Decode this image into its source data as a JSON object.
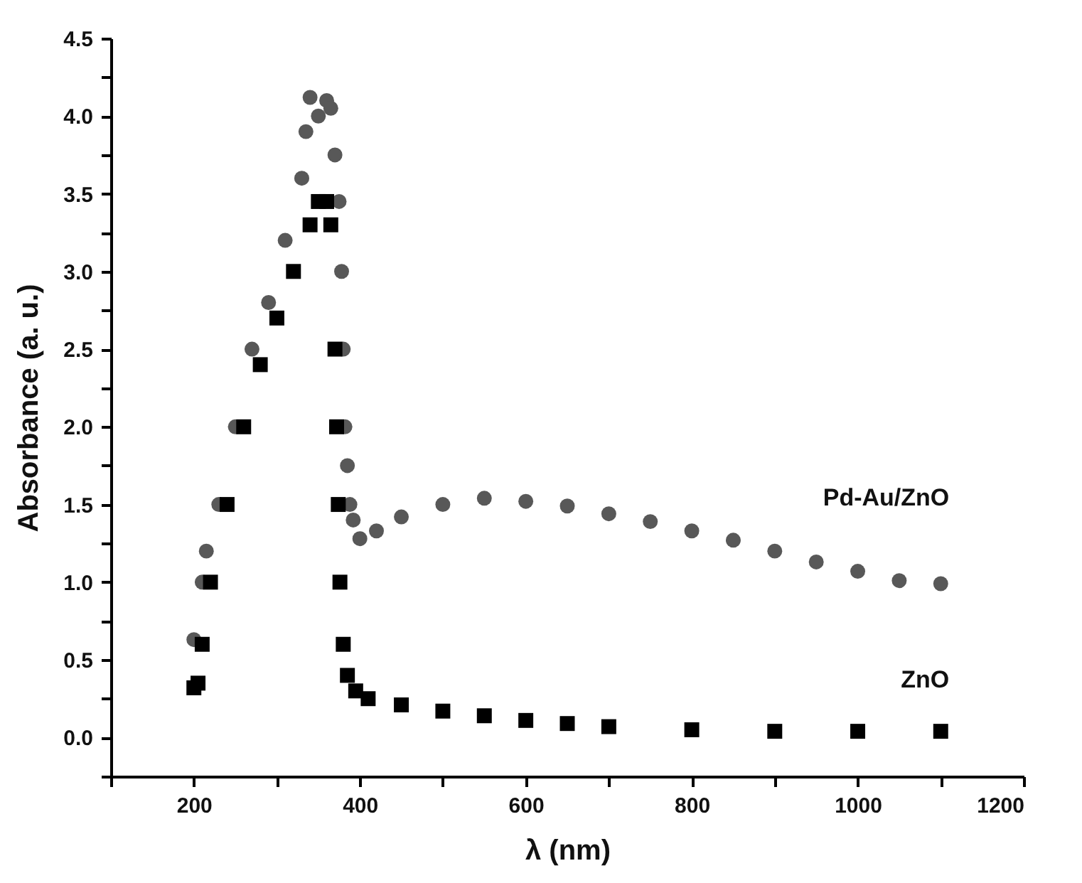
{
  "chart_data": {
    "type": "scatter",
    "xlabel": "λ (nm)",
    "ylabel": "Absorbance (a. u.)",
    "xlim": [
      100,
      1200
    ],
    "ylim": [
      -0.25,
      4.5
    ],
    "xticks": [
      {
        "value": 100,
        "label": null
      },
      200,
      {
        "value": 300,
        "label": null
      },
      400,
      {
        "value": 500,
        "label": null
      },
      600,
      {
        "value": 700,
        "label": null
      },
      800,
      {
        "value": 900,
        "label": null
      },
      1000,
      {
        "value": 1100,
        "label": null
      },
      1200
    ],
    "yticks": [
      {
        "value": -0.25,
        "label": null
      },
      {
        "value": 0,
        "label": "0.0"
      },
      {
        "value": 0.25,
        "label": null
      },
      0.5,
      {
        "value": 0.75,
        "label": null
      },
      {
        "value": 1,
        "label": "1.0"
      },
      {
        "value": 1.25,
        "label": null
      },
      1.5,
      {
        "value": 1.75,
        "label": null
      },
      {
        "value": 2,
        "label": "2.0"
      },
      {
        "value": 2.25,
        "label": null
      },
      2.5,
      {
        "value": 2.75,
        "label": null
      },
      {
        "value": 3,
        "label": "3.0"
      },
      {
        "value": 3.25,
        "label": null
      },
      3.5,
      {
        "value": 3.75,
        "label": null
      },
      {
        "value": 4,
        "label": "4.0"
      },
      {
        "value": 4.25,
        "label": null
      },
      4.5
    ],
    "grid": false,
    "legend": false,
    "series": [
      {
        "name": "Pd-Au/ZnO",
        "color": "#585858",
        "marker": "circle",
        "x": [
          200,
          210,
          215,
          230,
          250,
          270,
          290,
          310,
          330,
          335,
          340,
          350,
          360,
          365,
          370,
          375,
          378,
          380,
          382,
          385,
          388,
          392,
          400,
          420,
          450,
          500,
          550,
          600,
          650,
          700,
          750,
          800,
          850,
          900,
          950,
          1000,
          1050,
          1100
        ],
        "values": [
          0.63,
          1.0,
          1.2,
          1.5,
          2.0,
          2.5,
          2.8,
          3.2,
          3.6,
          3.9,
          4.12,
          4.0,
          4.1,
          4.05,
          3.75,
          3.45,
          3.0,
          2.5,
          2.0,
          1.75,
          1.5,
          1.4,
          1.28,
          1.33,
          1.42,
          1.5,
          1.54,
          1.52,
          1.49,
          1.44,
          1.39,
          1.33,
          1.27,
          1.2,
          1.13,
          1.07,
          1.01,
          0.99
        ]
      },
      {
        "name": "ZnO",
        "color": "#000000",
        "marker": "square",
        "x": [
          200,
          205,
          210,
          220,
          240,
          260,
          280,
          300,
          320,
          340,
          350,
          360,
          365,
          370,
          372,
          374,
          376,
          380,
          385,
          395,
          410,
          450,
          500,
          550,
          600,
          650,
          700,
          800,
          900,
          1000,
          1100
        ],
        "values": [
          0.32,
          0.35,
          0.6,
          1.0,
          1.5,
          2.0,
          2.4,
          2.7,
          3.0,
          3.3,
          3.45,
          3.45,
          3.3,
          2.5,
          2.0,
          1.5,
          1.0,
          0.6,
          0.4,
          0.3,
          0.25,
          0.21,
          0.17,
          0.14,
          0.11,
          0.09,
          0.07,
          0.05,
          0.04,
          0.04,
          0.04
        ]
      }
    ]
  }
}
